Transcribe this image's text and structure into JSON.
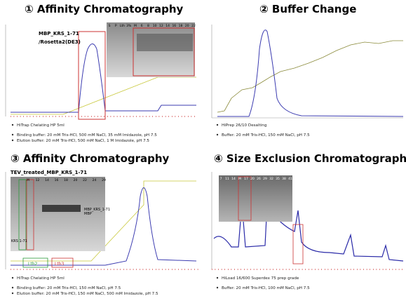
{
  "panels": [
    {
      "title": "① Affinity Chromatography",
      "labels": [
        "MBP_KRS_1-71",
        "/Rosetta2(DE3)"
      ],
      "gel_lanes": [
        "S",
        "P",
        "Lth",
        "3%",
        "M",
        "6",
        "8",
        "10",
        "12",
        "14",
        "16",
        "18",
        "20",
        "22"
      ],
      "bullets": [
        "HiTrap Chelating HP 5ml",
        "Binding buffer: 20 mM Tris-HCl, 500 mM NaCl, 35 mM Imidazole, pH 7.5",
        "Elution buffer: 20 mM Tris-HCl, 500 mM NaCl, 1 M Imidazole, pH 7.5"
      ]
    },
    {
      "title": "② Buffer Change",
      "bullets": [
        "HiPrep 26/10 Desalting",
        "Buffer: 20 mM Tris-HCl, 150 mM NaCl, pH 7.5"
      ]
    },
    {
      "title": "③ Affinity Chromatography",
      "labels": [
        "TEV_treated_MBP_KRS_1-71"
      ],
      "gel_lanes": [
        "M",
        "12",
        "14",
        "16",
        "18",
        "20",
        "22",
        "24",
        "29"
      ],
      "band_labels": [
        "MBP_KRS_1-71",
        "MBP",
        "KRS 1-71"
      ],
      "fractions": [
        "Lth2",
        "Lth3"
      ],
      "bullets": [
        "HiTrap Chelating HP 5ml",
        "Binding buffer: 20 mM Tris-HCl, 150 mM NaCl, pH 7.5",
        "Elution buffer: 20 mM Tris-HCl, 150 mM NaCl, 500 mM Imidazole, pH 7.5"
      ]
    },
    {
      "title": "④ Size Exclusion Chromatography",
      "gel_lanes": [
        "7",
        "11",
        "14",
        "M",
        "17",
        "20",
        "26",
        "29",
        "32",
        "35",
        "38",
        "41"
      ],
      "bullets": [
        "HiLoad 16/600 Superdex 75 prep grade",
        "Buffer: 20 mM Tris-HCl, 100 mM NaCl, pH 7.5"
      ]
    }
  ]
}
